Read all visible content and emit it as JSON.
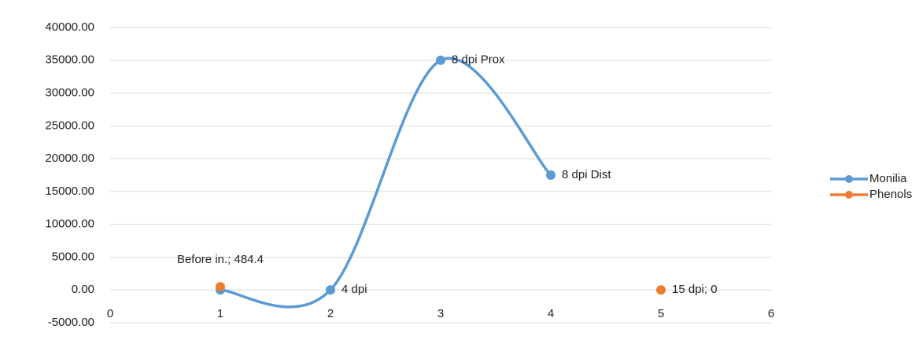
{
  "chart_data": {
    "type": "scatter",
    "smooth": true,
    "xlim": [
      0,
      6
    ],
    "xticks": [
      0,
      1,
      2,
      3,
      4,
      5,
      6
    ],
    "ylim": [
      -5000,
      40000
    ],
    "yticks": [
      {
        "value": -5000,
        "label": "-5000.00"
      },
      {
        "value": 0,
        "label": "0.00"
      },
      {
        "value": 5000,
        "label": "5000.00"
      },
      {
        "value": 10000,
        "label": "10000.00"
      },
      {
        "value": 15000,
        "label": "15000.00"
      },
      {
        "value": 20000,
        "label": "20000.00"
      },
      {
        "value": 25000,
        "label": "25000.00"
      },
      {
        "value": 30000,
        "label": "30000.00"
      },
      {
        "value": 35000,
        "label": "35000.00"
      },
      {
        "value": 40000,
        "label": "40000.00"
      }
    ],
    "grid": true,
    "legend": "right",
    "series": [
      {
        "name": "Monilia",
        "color": "#5b9bd5",
        "x": [
          1,
          2,
          3,
          4
        ],
        "values": [
          0,
          0,
          35000,
          17500
        ],
        "labels": [
          null,
          "4 dpi",
          "8 dpi Prox",
          "8 dpi Dist"
        ]
      },
      {
        "name": "Phenols",
        "color": "#ed7d31",
        "x": [
          1,
          5
        ],
        "values": [
          484.4,
          0
        ],
        "labels": [
          "Before in.; 484.4",
          "15 dpi; 0"
        ]
      }
    ]
  }
}
